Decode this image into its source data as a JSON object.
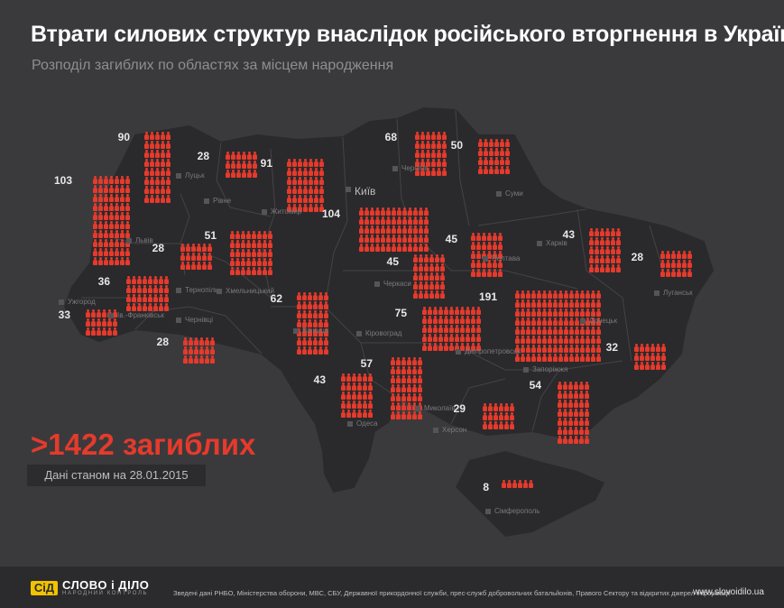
{
  "title": "Втрати силових структур внаслідок російського вторгнення в Україну",
  "subtitle": "Розподіл загиблих по областях за місцем народження",
  "total_label": ">1422 загиблих",
  "date_label": "Дані станом на 28.01.2015",
  "colors": {
    "background": "#3a3a3c",
    "land": "#2a2a2c",
    "accent": "#e53a2c",
    "city_marker": "#555559",
    "border": "#4a4a4d"
  },
  "icons": {
    "person": "person-icon",
    "city": "city-square-icon"
  },
  "cities": [
    "Луцьк",
    "Рівне",
    "Житомир",
    "Київ",
    "Чернігів",
    "Суми",
    "Львів",
    "Тернопіль",
    "Хмельницький",
    "Вінниця",
    "Ужгород",
    "Ів.-Франківськ",
    "Чернівці",
    "Черкаси",
    "Полтава",
    "Харків",
    "Луганськ",
    "Донецьк",
    "Кіровоград",
    "Дніпропетровськ",
    "Запоріжжя",
    "Миколаїв",
    "Одеса",
    "Херсон",
    "Сімферополь"
  ],
  "regions": [
    {
      "count": 90
    },
    {
      "count": 28
    },
    {
      "count": 91
    },
    {
      "count": 68
    },
    {
      "count": 50
    },
    {
      "count": 103
    },
    {
      "count": 28
    },
    {
      "count": 51
    },
    {
      "count": 104
    },
    {
      "count": 45
    },
    {
      "count": 43
    },
    {
      "count": 28
    },
    {
      "count": 36
    },
    {
      "count": 45
    },
    {
      "count": 62
    },
    {
      "count": 33
    },
    {
      "count": 75
    },
    {
      "count": 191
    },
    {
      "count": 28
    },
    {
      "count": 32
    },
    {
      "count": 57
    },
    {
      "count": 43
    },
    {
      "count": 54
    },
    {
      "count": 29
    },
    {
      "count": 8
    }
  ],
  "footer": {
    "logo_mark": "СіД",
    "logo_name": "СЛОВО і ДІЛО",
    "logo_tagline": "НАРОДНИЙ КОНТРОЛЬ",
    "sources": "Зведені дані  РНБО, Міністерства оборони, МВС, СБУ, Державної прикордонної служби, прес-служб добровольчих батальйонів, Правого Сектору та відкритих джерел інформації",
    "site": "www.slovoidilo.ua"
  }
}
